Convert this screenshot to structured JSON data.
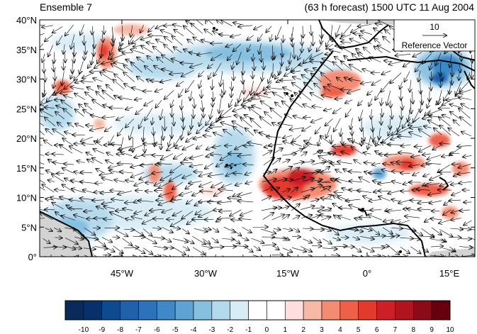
{
  "header": {
    "left": "Ensemble 7",
    "right": "(63 h forecast) 1500 UTC 11 Aug 2004"
  },
  "map": {
    "lat_labels": [
      "40°N",
      "35°N",
      "30°N",
      "25°N",
      "20°N",
      "15°N",
      "10°N",
      "5°N",
      "0°"
    ],
    "lon_labels": [
      "45°W",
      "30°W",
      "15°W",
      "0°",
      "15°E"
    ],
    "colors": {
      "ocean_bg": "#ffffff",
      "land_gray": "#d3d3d3",
      "coast": "#000000",
      "vector": "#000000"
    }
  },
  "reference_vector": {
    "value": "10",
    "label": "Reference Vector"
  },
  "colorbar": {
    "labels": [
      "-10",
      "-9",
      "-8",
      "-7",
      "-6",
      "-5",
      "-4",
      "-3",
      "-2",
      "-1",
      "0",
      "1",
      "2",
      "3",
      "4",
      "5",
      "6",
      "7",
      "8",
      "9",
      "10"
    ],
    "colors": [
      "#0a2a5c",
      "#08306b",
      "#0d4a8f",
      "#1f62ab",
      "#2c73ba",
      "#3e89c6",
      "#5ea3d3",
      "#86c0e0",
      "#b3d9ec",
      "#d8ecf6",
      "#ffffff",
      "#ffffff",
      "#fde0dd",
      "#f8b8a6",
      "#f48b73",
      "#ee6048",
      "#e33a2e",
      "#cc1f27",
      "#b0141d",
      "#8b0c18",
      "#67000d"
    ]
  }
}
